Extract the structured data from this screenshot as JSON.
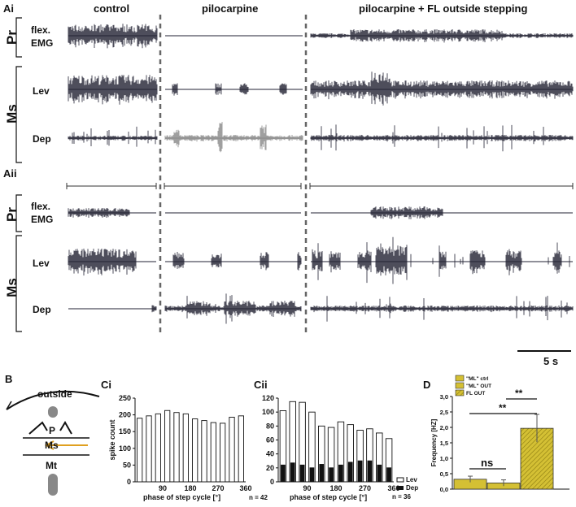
{
  "panels": {
    "ai": "Ai",
    "aii": "Aii",
    "b": "B",
    "ci": "Ci",
    "cii": "Cii",
    "d": "D"
  },
  "conditions": [
    "control",
    "pilocarpine",
    "pilocarpine + FL outside stepping"
  ],
  "groups": {
    "pr": "Pr",
    "ms": "Ms"
  },
  "traces": {
    "flex_line1": "flex.",
    "flex_line2": "EMG",
    "lev": "Lev",
    "dep": "Dep"
  },
  "scale_bar": "5 s",
  "schematic": {
    "outside": "outside",
    "p": "P",
    "ms": "Ms",
    "mt": "Mt"
  },
  "colors": {
    "trace": "#222233",
    "dep_grey": "#888888",
    "arrow": "#e0a020",
    "bar_gold": "#d4c034"
  },
  "chart_data": [
    {
      "id": "Ci",
      "type": "bar",
      "title": "",
      "ylabel": "spike count",
      "xlabel": "phase of step cycle [°]",
      "note": "n = 42",
      "xticks": [
        "90",
        "180",
        "270",
        "360"
      ],
      "yticks": [
        "0",
        "50",
        "100",
        "150",
        "200",
        "250"
      ],
      "ylim": [
        0,
        250
      ],
      "series": [
        {
          "name": "Lev",
          "values": [
            190,
            197,
            203,
            213,
            207,
            203,
            188,
            183,
            177,
            175,
            193,
            197
          ]
        }
      ]
    },
    {
      "id": "Cii",
      "type": "bar",
      "title": "",
      "ylabel": "",
      "xlabel": "phase of step cycle [°]",
      "note": "n = 36",
      "xticks": [
        "90",
        "180",
        "270",
        "360"
      ],
      "yticks": [
        "0",
        "20",
        "40",
        "60",
        "80",
        "100",
        "120"
      ],
      "ylim": [
        0,
        120
      ],
      "legend": [
        "Lev",
        "Dep"
      ],
      "series": [
        {
          "name": "Lev",
          "values": [
            102,
            115,
            114,
            100,
            80,
            78,
            86,
            82,
            74,
            76,
            70,
            62
          ]
        },
        {
          "name": "Dep",
          "values": [
            24,
            27,
            24,
            20,
            25,
            20,
            24,
            28,
            30,
            30,
            24,
            20
          ]
        }
      ]
    },
    {
      "id": "D",
      "type": "bar",
      "title": "",
      "ylabel": "Frequency [HZ]",
      "xlabel": "",
      "yticks": [
        "0,0",
        "0,5",
        "1,0",
        "1,5",
        "2,0",
        "2,5",
        "3,0"
      ],
      "ylim": [
        0,
        3
      ],
      "categories": [
        "\"ML\" ctrl",
        "\"ML\" OUT",
        "FL OUT"
      ],
      "values": [
        0.32,
        0.2,
        1.97
      ],
      "errors": [
        0.1,
        0.1,
        0.45
      ],
      "annotations": [
        "ns",
        "**",
        "**"
      ]
    }
  ]
}
